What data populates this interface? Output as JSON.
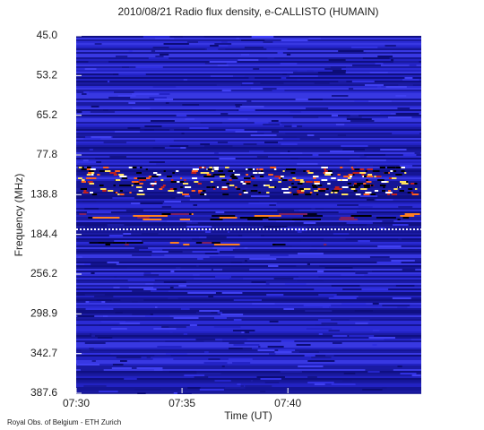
{
  "chart_data": {
    "type": "spectrogram",
    "title": "2010/08/21  Radio flux density, e-CALLISTO (HUMAIN)",
    "x_label": "Time (UT)",
    "y_label": "Frequency (MHz)",
    "footer": "Royal Obs. of Belgium - ETH Zurich",
    "xlim": [
      450,
      466.3
    ],
    "xticks": [
      {
        "value": 450,
        "label": "07:30"
      },
      {
        "value": 455,
        "label": "07:35"
      },
      {
        "value": 460,
        "label": "07:40"
      }
    ],
    "ylim": [
      45.0,
      387.6
    ],
    "yticks": [
      {
        "value": 45.0,
        "label": "45.0"
      },
      {
        "value": 53.2,
        "label": "53.2"
      },
      {
        "value": 65.2,
        "label": "65.2"
      },
      {
        "value": 77.8,
        "label": "77.8"
      },
      {
        "value": 138.8,
        "label": "138.8"
      },
      {
        "value": 184.4,
        "label": "184.4"
      },
      {
        "value": 256.2,
        "label": "256.2"
      },
      {
        "value": 298.9,
        "label": "298.9"
      },
      {
        "value": 342.7,
        "label": "342.7"
      },
      {
        "value": 387.6,
        "label": "387.6"
      }
    ]
  }
}
